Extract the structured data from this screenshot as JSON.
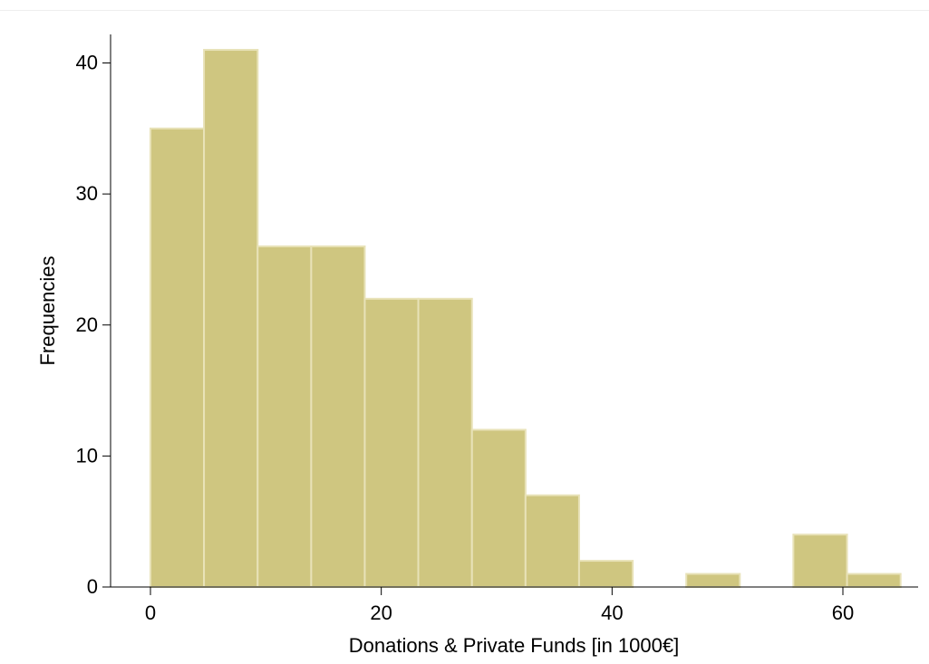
{
  "chart_data": {
    "type": "bar",
    "subtype": "histogram",
    "bin_edges": [
      0,
      4.64,
      9.29,
      13.93,
      18.57,
      23.21,
      27.86,
      32.5,
      37.14,
      41.79,
      46.43,
      51.07,
      55.71,
      60.36,
      65
    ],
    "values": [
      35,
      41,
      26,
      26,
      22,
      22,
      12,
      7,
      2,
      0,
      1,
      0,
      4,
      1
    ],
    "xlabel": "Donations & Private Funds [in 1000€]",
    "ylabel": "Frequencies",
    "xlim": [
      -5,
      65.5
    ],
    "ylim": [
      0,
      42
    ],
    "xticks": [
      0,
      20,
      40,
      60
    ],
    "yticks": [
      0,
      10,
      20,
      30,
      40
    ],
    "xtick_labels": [
      "0",
      "20",
      "40",
      "60"
    ],
    "ytick_labels": [
      "0",
      "10",
      "20",
      "30",
      "40"
    ],
    "grid": false,
    "colors": {
      "bar_fill": "#cfc680",
      "bar_edge": "#e8e2b8",
      "axis": "#000000"
    }
  }
}
